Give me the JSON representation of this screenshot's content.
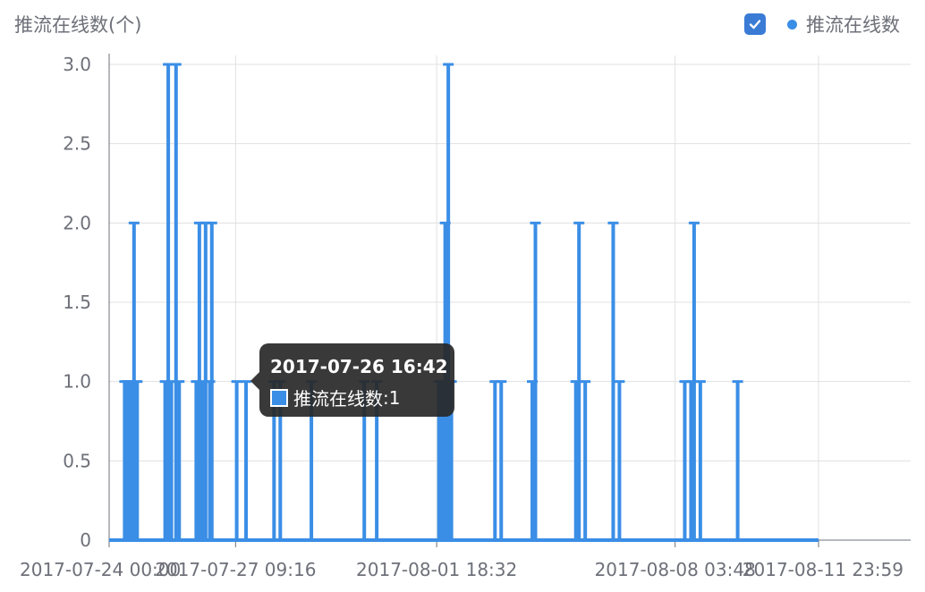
{
  "chart_data": {
    "type": "bar",
    "ylabel": "推流在线数(个)",
    "ylim": [
      0,
      3.0
    ],
    "yticks": [
      "0",
      "0.5",
      "1.0",
      "1.5",
      "2.0",
      "2.5",
      "3.0"
    ],
    "xticks": [
      "2017-07-24 00:00",
      "2017-07-27 09:16",
      "2017-08-01 18:32",
      "2017-08-08 03:48",
      "2017-08-11 23:59"
    ],
    "grid": true,
    "legend_position": "top-right",
    "series": [
      {
        "name": "推流在线数",
        "color": "#3a8ee6",
        "points": [
          [
            "2017-07-24 10:00",
            1
          ],
          [
            "2017-07-24 12:00",
            1
          ],
          [
            "2017-07-24 14:00",
            1
          ],
          [
            "2017-07-24 16:00",
            2
          ],
          [
            "2017-07-24 18:00",
            1
          ],
          [
            "2017-07-25 12:00",
            1
          ],
          [
            "2017-07-25 14:00",
            3
          ],
          [
            "2017-07-25 16:00",
            1
          ],
          [
            "2017-07-25 19:00",
            3
          ],
          [
            "2017-07-25 21:00",
            1
          ],
          [
            "2017-07-26 08:00",
            1
          ],
          [
            "2017-07-26 10:00",
            2
          ],
          [
            "2017-07-26 12:00",
            1
          ],
          [
            "2017-07-26 14:00",
            2
          ],
          [
            "2017-07-26 16:42",
            1
          ],
          [
            "2017-07-26 18:00",
            2
          ],
          [
            "2017-07-27 10:00",
            1
          ],
          [
            "2017-07-27 16:00",
            1
          ],
          [
            "2017-07-28 10:00",
            1
          ],
          [
            "2017-07-28 14:00",
            1
          ],
          [
            "2017-07-29 10:00",
            1
          ],
          [
            "2017-07-30 20:00",
            1
          ],
          [
            "2017-07-31 04:00",
            1
          ],
          [
            "2017-08-01 20:00",
            1
          ],
          [
            "2017-08-01 22:00",
            1
          ],
          [
            "2017-08-02 00:00",
            2
          ],
          [
            "2017-08-02 02:00",
            3
          ],
          [
            "2017-08-02 04:00",
            1
          ],
          [
            "2017-08-03 08:00",
            1
          ],
          [
            "2017-08-03 12:00",
            1
          ],
          [
            "2017-08-04 08:00",
            1
          ],
          [
            "2017-08-04 10:00",
            2
          ],
          [
            "2017-08-05 12:00",
            1
          ],
          [
            "2017-08-05 14:00",
            2
          ],
          [
            "2017-08-05 18:00",
            1
          ],
          [
            "2017-08-06 12:00",
            2
          ],
          [
            "2017-08-06 16:00",
            1
          ],
          [
            "2017-08-08 10:00",
            1
          ],
          [
            "2017-08-08 14:00",
            1
          ],
          [
            "2017-08-08 16:00",
            2
          ],
          [
            "2017-08-08 20:00",
            1
          ],
          [
            "2017-08-09 20:00",
            1
          ]
        ]
      }
    ]
  },
  "legend": {
    "label": "推流在线数"
  },
  "tooltip": {
    "title": "2017-07-26 16:42",
    "series": "推流在线数",
    "value": "1"
  }
}
